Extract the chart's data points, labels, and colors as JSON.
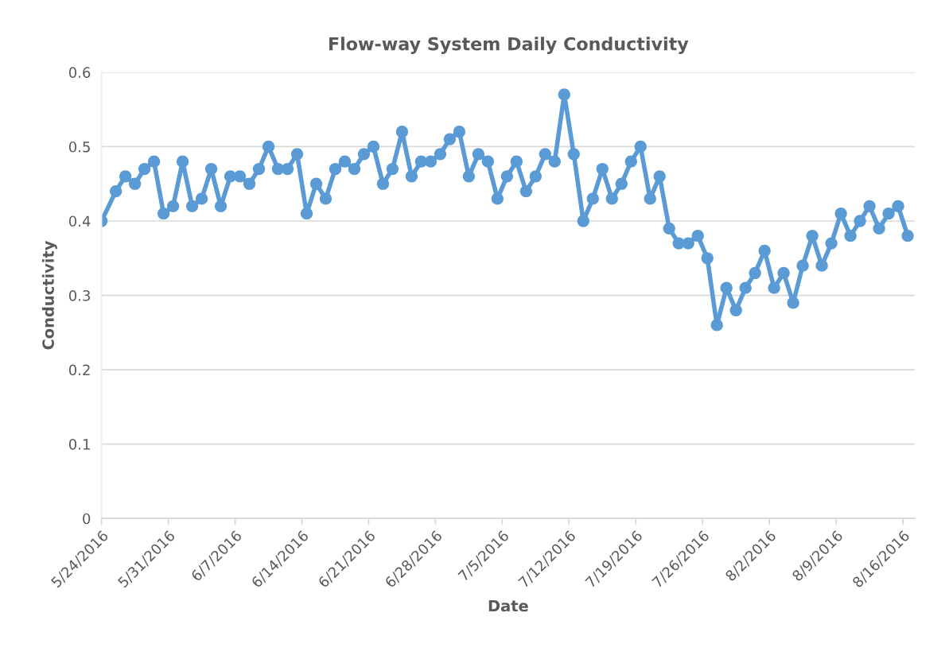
{
  "chart_data": {
    "type": "line",
    "title": "Flow-way System Daily Conductivity",
    "xlabel": "Date",
    "ylabel": "Conductivity",
    "x": [
      "2016-05-24T00:00",
      "2016-05-25T12:00",
      "2016-05-26T12:00",
      "2016-05-27T12:00",
      "2016-05-28T12:00",
      "2016-05-29T12:00",
      "2016-05-30T12:00",
      "2016-05-31T12:00",
      "2016-06-01T12:00",
      "2016-06-02T12:00",
      "2016-06-03T12:00",
      "2016-06-04T12:00",
      "2016-06-05T12:00",
      "2016-06-06T12:00",
      "2016-06-07T12:00",
      "2016-06-08T12:00",
      "2016-06-09T12:00",
      "2016-06-10T12:00",
      "2016-06-11T12:00",
      "2016-06-12T12:00",
      "2016-06-13T12:00",
      "2016-06-14T12:00",
      "2016-06-15T12:00",
      "2016-06-16T12:00",
      "2016-06-17T12:00",
      "2016-06-18T12:00",
      "2016-06-19T12:00",
      "2016-06-20T12:00",
      "2016-06-21T12:00",
      "2016-06-22T12:00",
      "2016-06-23T12:00",
      "2016-06-24T12:00",
      "2016-06-25T12:00",
      "2016-06-26T12:00",
      "2016-06-27T12:00",
      "2016-06-28T12:00",
      "2016-06-29T12:00",
      "2016-06-30T12:00",
      "2016-07-01T12:00",
      "2016-07-02T12:00",
      "2016-07-03T12:00",
      "2016-07-04T12:00",
      "2016-07-05T12:00",
      "2016-07-06T12:00",
      "2016-07-07T12:00",
      "2016-07-08T12:00",
      "2016-07-09T12:00",
      "2016-07-10T12:00",
      "2016-07-11T12:00",
      "2016-07-12T12:00",
      "2016-07-13T12:00",
      "2016-07-14T12:00",
      "2016-07-15T12:00",
      "2016-07-16T12:00",
      "2016-07-17T12:00",
      "2016-07-18T12:00",
      "2016-07-19T12:00",
      "2016-07-20T12:00",
      "2016-07-21T12:00",
      "2016-07-22T12:00",
      "2016-07-23T12:00",
      "2016-07-24T12:00",
      "2016-07-25T12:00",
      "2016-07-26T12:00",
      "2016-07-27T12:00",
      "2016-07-28T12:00",
      "2016-07-29T12:00",
      "2016-07-30T12:00",
      "2016-07-31T12:00",
      "2016-08-01T12:00",
      "2016-08-02T12:00",
      "2016-08-03T12:00",
      "2016-08-04T12:00",
      "2016-08-05T12:00",
      "2016-08-06T12:00",
      "2016-08-07T12:00",
      "2016-08-08T12:00",
      "2016-08-09T12:00",
      "2016-08-10T12:00",
      "2016-08-11T12:00",
      "2016-08-12T12:00",
      "2016-08-13T12:00",
      "2016-08-14T12:00",
      "2016-08-15T12:00",
      "2016-08-16T12:00"
    ],
    "series": [
      {
        "color": "#5b9bd5",
        "values": [
          0.4,
          0.44,
          0.46,
          0.45,
          0.47,
          0.48,
          0.41,
          0.42,
          0.48,
          0.42,
          0.43,
          0.47,
          0.42,
          0.46,
          0.46,
          0.45,
          0.47,
          0.5,
          0.47,
          0.47,
          0.49,
          0.41,
          0.45,
          0.43,
          0.47,
          0.48,
          0.47,
          0.49,
          0.5,
          0.45,
          0.47,
          0.52,
          0.46,
          0.48,
          0.48,
          0.49,
          0.51,
          0.52,
          0.46,
          0.49,
          0.48,
          0.43,
          0.46,
          0.48,
          0.44,
          0.46,
          0.49,
          0.48,
          0.57,
          0.49,
          0.4,
          0.43,
          0.47,
          0.43,
          0.45,
          0.48,
          0.5,
          0.43,
          0.46,
          0.39,
          0.37,
          0.37,
          0.38,
          0.35,
          0.26,
          0.31,
          0.28,
          0.31,
          0.33,
          0.36,
          0.31,
          0.33,
          0.29,
          0.34,
          0.38,
          0.34,
          0.37,
          0.41,
          0.38,
          0.4,
          0.42,
          0.39,
          0.41,
          0.42,
          0.38
        ]
      }
    ],
    "xlim": [
      "2016-05-24T00:00",
      "2016-08-17T06:00"
    ],
    "xticks": [
      {
        "value": "2016-05-24",
        "label": "5/24/2016"
      },
      {
        "value": "2016-05-31",
        "label": "5/31/2016"
      },
      {
        "value": "2016-06-07",
        "label": "6/7/2016"
      },
      {
        "value": "2016-06-14",
        "label": "6/14/2016"
      },
      {
        "value": "2016-06-21",
        "label": "6/21/2016"
      },
      {
        "value": "2016-06-28",
        "label": "6/28/2016"
      },
      {
        "value": "2016-07-05",
        "label": "7/5/2016"
      },
      {
        "value": "2016-07-12",
        "label": "7/12/2016"
      },
      {
        "value": "2016-07-19",
        "label": "7/19/2016"
      },
      {
        "value": "2016-07-26",
        "label": "7/26/2016"
      },
      {
        "value": "2016-08-02",
        "label": "8/2/2016"
      },
      {
        "value": "2016-08-09",
        "label": "8/9/2016"
      },
      {
        "value": "2016-08-16",
        "label": "8/16/2016"
      }
    ],
    "ylim": [
      0,
      0.6
    ],
    "yticks": [
      {
        "value": 0,
        "label": "0"
      },
      {
        "value": 0.1,
        "label": "0.1"
      },
      {
        "value": 0.2,
        "label": "0.2"
      },
      {
        "value": 0.3,
        "label": "0.3"
      },
      {
        "value": 0.4,
        "label": "0.4"
      },
      {
        "value": 0.5,
        "label": "0.5"
      },
      {
        "value": 0.6,
        "label": "0.6"
      }
    ],
    "grid": "y",
    "marker": "circle",
    "line_style": "solid"
  }
}
